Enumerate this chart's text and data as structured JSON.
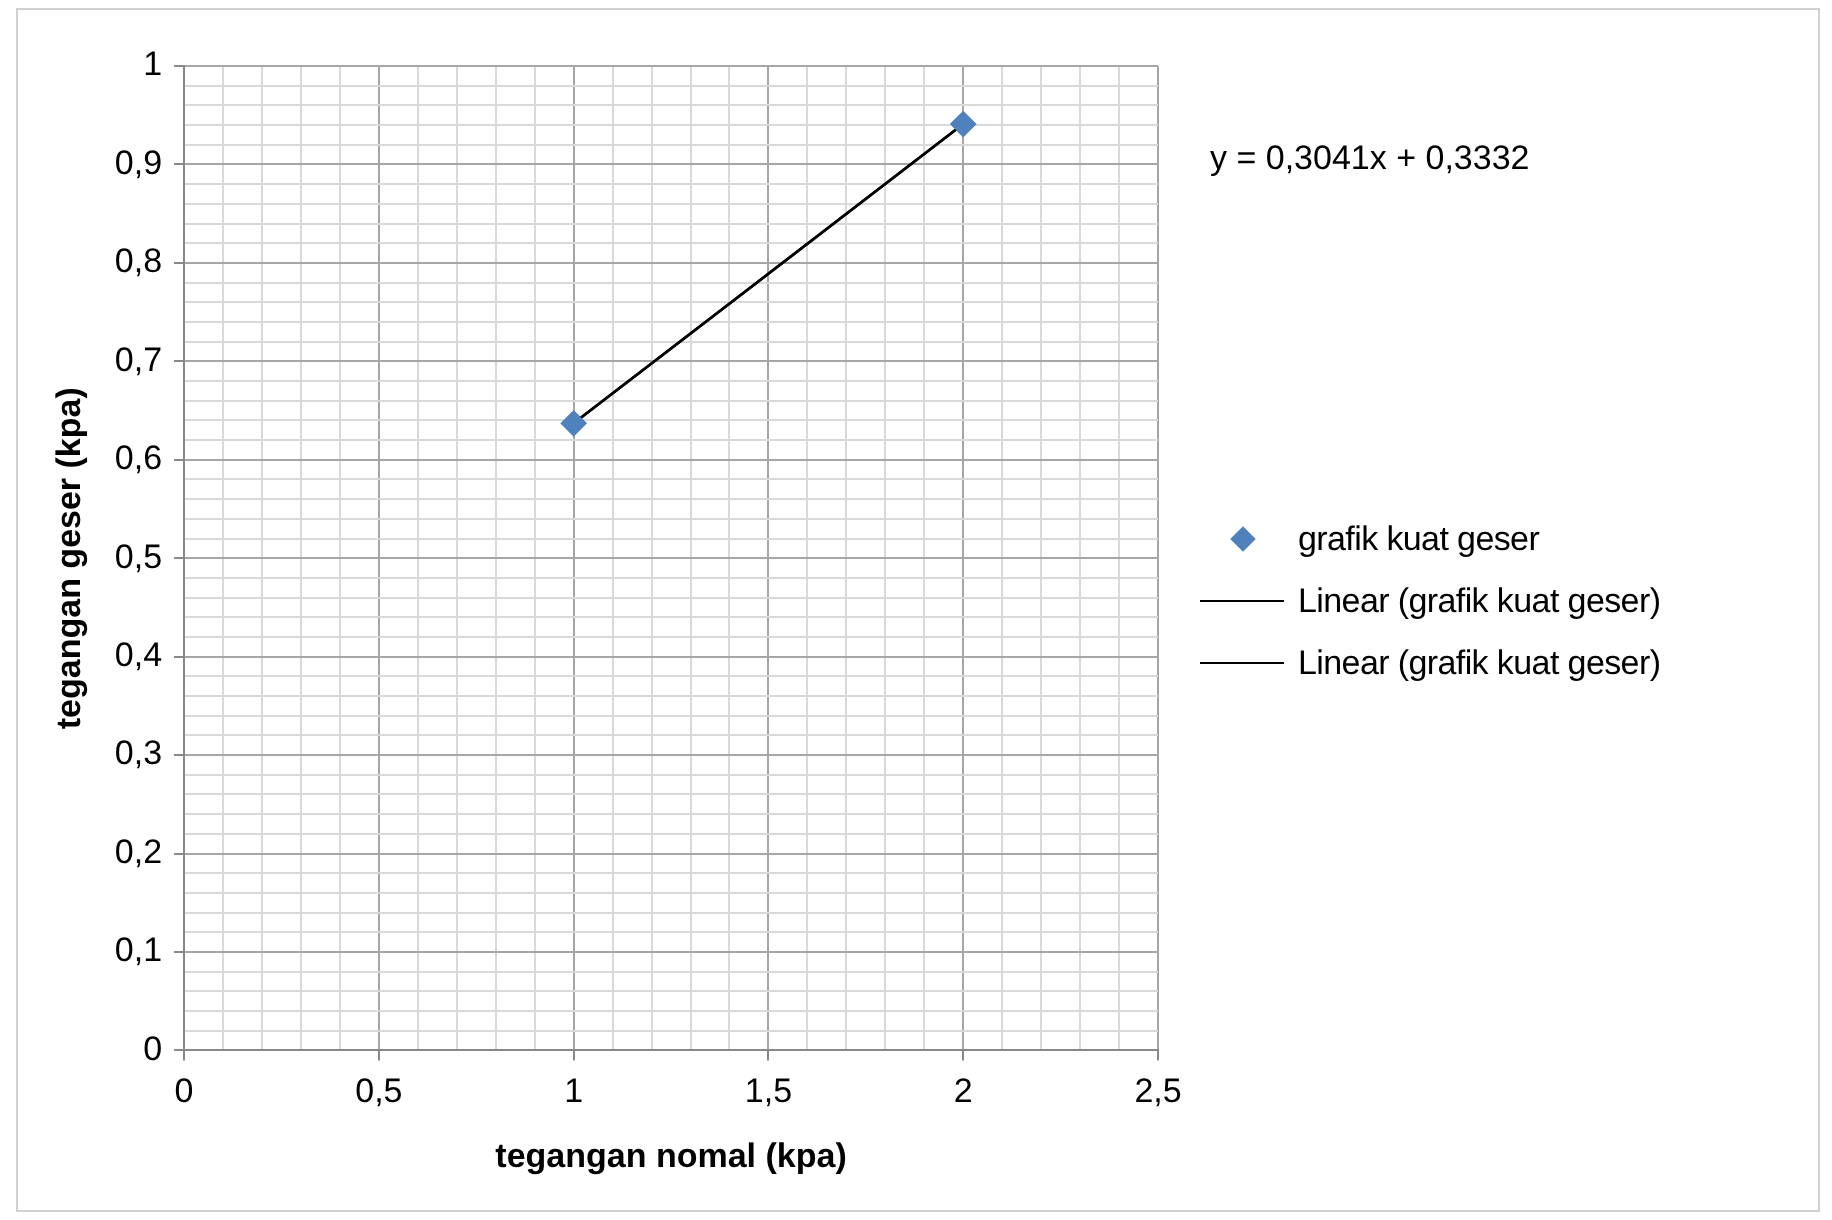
{
  "chart_data": {
    "type": "scatter",
    "xlabel": "tegangan nomal (kpa)",
    "ylabel": "tegangan geser (kpa)",
    "annotations": [
      "y = 0,3041x + 0,3332"
    ],
    "series": [
      {
        "name": "grafik kuat geser",
        "type": "scatter",
        "color": "#4f81bd",
        "marker": "diamond",
        "values": [
          0.637,
          0.941
        ]
      },
      {
        "name": "Linear (grafik kuat geser)",
        "type": "line",
        "color": "#000000",
        "marker": "none",
        "values": [
          0.637,
          0.941
        ]
      },
      {
        "name": "Linear (grafik kuat geser)",
        "type": "line",
        "color": "#000000",
        "marker": "none",
        "values": [
          0.637,
          0.941
        ]
      }
    ],
    "x": [
      1,
      2
    ],
    "xlim": [
      0,
      2.5
    ],
    "xticks": [
      0,
      {
        "value": 0.1,
        "label": null
      },
      {
        "value": 0.2,
        "label": null
      },
      {
        "value": 0.3,
        "label": null
      },
      {
        "value": 0.4,
        "label": null
      },
      {
        "value": 0.5,
        "label": "0,5"
      },
      {
        "value": 0.6,
        "label": null
      },
      {
        "value": 0.7,
        "label": null
      },
      {
        "value": 0.8,
        "label": null
      },
      {
        "value": 0.9,
        "label": null
      },
      1,
      {
        "value": 1.1,
        "label": null
      },
      {
        "value": 1.2,
        "label": null
      },
      {
        "value": 1.3,
        "label": null
      },
      {
        "value": 1.4,
        "label": null
      },
      {
        "value": 1.5,
        "label": "1,5"
      },
      {
        "value": 1.6,
        "label": null
      },
      {
        "value": 1.7,
        "label": null
      },
      {
        "value": 1.8,
        "label": null
      },
      {
        "value": 1.9,
        "label": null
      },
      2,
      {
        "value": 2.1,
        "label": null
      },
      {
        "value": 2.2,
        "label": null
      },
      {
        "value": 2.3,
        "label": null
      },
      {
        "value": 2.4,
        "label": null
      },
      {
        "value": 2.5,
        "label": "2,5"
      }
    ],
    "ylim": [
      0,
      1
    ],
    "yticks": [
      0,
      {
        "value": 0.02,
        "label": null
      },
      {
        "value": 0.04,
        "label": null
      },
      {
        "value": 0.06,
        "label": null
      },
      {
        "value": 0.08,
        "label": null
      },
      {
        "value": 0.1,
        "label": "0,1"
      },
      {
        "value": 0.12,
        "label": null
      },
      {
        "value": 0.14,
        "label": null
      },
      {
        "value": 0.16,
        "label": null
      },
      {
        "value": 0.18,
        "label": null
      },
      {
        "value": 0.2,
        "label": "0,2"
      },
      {
        "value": 0.22,
        "label": null
      },
      {
        "value": 0.24,
        "label": null
      },
      {
        "value": 0.26,
        "label": null
      },
      {
        "value": 0.28,
        "label": null
      },
      {
        "value": 0.3,
        "label": "0,3"
      },
      {
        "value": 0.32,
        "label": null
      },
      {
        "value": 0.34,
        "label": null
      },
      {
        "value": 0.36,
        "label": null
      },
      {
        "value": 0.38,
        "label": null
      },
      {
        "value": 0.4,
        "label": "0,4"
      },
      {
        "value": 0.42,
        "label": null
      },
      {
        "value": 0.44,
        "label": null
      },
      {
        "value": 0.46,
        "label": null
      },
      {
        "value": 0.48,
        "label": null
      },
      {
        "value": 0.5,
        "label": "0,5"
      },
      {
        "value": 0.52,
        "label": null
      },
      {
        "value": 0.54,
        "label": null
      },
      {
        "value": 0.56,
        "label": null
      },
      {
        "value": 0.58,
        "label": null
      },
      {
        "value": 0.6,
        "label": "0,6"
      },
      {
        "value": 0.62,
        "label": null
      },
      {
        "value": 0.64,
        "label": null
      },
      {
        "value": 0.66,
        "label": null
      },
      {
        "value": 0.68,
        "label": null
      },
      {
        "value": 0.7,
        "label": "0,7"
      },
      {
        "value": 0.72,
        "label": null
      },
      {
        "value": 0.74,
        "label": null
      },
      {
        "value": 0.76,
        "label": null
      },
      {
        "value": 0.78,
        "label": null
      },
      {
        "value": 0.8,
        "label": "0,8"
      },
      {
        "value": 0.82,
        "label": null
      },
      {
        "value": 0.84,
        "label": null
      },
      {
        "value": 0.86,
        "label": null
      },
      {
        "value": 0.88,
        "label": null
      },
      {
        "value": 0.9,
        "label": "0,9"
      },
      {
        "value": 0.92,
        "label": null
      },
      {
        "value": 0.94,
        "label": null
      },
      {
        "value": 0.96,
        "label": null
      },
      {
        "value": 0.98,
        "label": null
      },
      1
    ],
    "grid": true,
    "legend": "right"
  }
}
